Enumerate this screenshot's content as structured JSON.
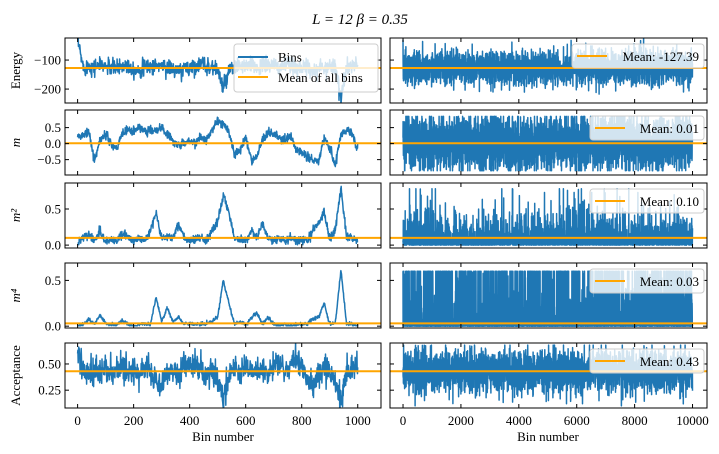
{
  "chart_data": {
    "type": "line",
    "title": "L = 12   β = 0.35",
    "xlabel": "Bin number",
    "colors": {
      "bins": "#1f77b4",
      "mean": "#ffa500"
    },
    "left": {
      "xlim": [
        -45,
        1083
      ],
      "xticks": [
        0,
        200,
        400,
        600,
        800,
        1000
      ],
      "xtick_labels": [
        "0",
        "200",
        "400",
        "600",
        "800",
        "1000"
      ],
      "n_bins": 1000,
      "legend": [
        "Bins",
        "Mean of all bins"
      ]
    },
    "right": {
      "xlim": [
        -450,
        10500
      ],
      "xticks": [
        0,
        2000,
        4000,
        6000,
        8000,
        10000
      ],
      "xtick_labels": [
        "0",
        "2000",
        "4000",
        "6000",
        "8000",
        "10000"
      ],
      "n_bins": 10000
    },
    "panels": [
      {
        "ylabel": "Energy",
        "ylim": [
          -248,
          -24
        ],
        "yticks": [
          -100,
          -200
        ],
        "ytick_labels": [
          "−100",
          "−200"
        ],
        "mean": -127.39,
        "mean_label": "Mean: -127.39",
        "coarse": [
          -30,
          -125,
          -120,
          -125,
          -118,
          -122,
          -125,
          -128,
          -120,
          -118,
          -130,
          -135,
          -125,
          -122,
          -120,
          -118,
          -125,
          -130,
          -140,
          -130,
          -125,
          -118,
          -115,
          -120,
          -125,
          -130,
          -200,
          -140,
          -125,
          -120,
          -122,
          -118,
          -125,
          -120,
          -115,
          -120,
          -125,
          -118,
          -122,
          -125,
          -120,
          -130,
          -135,
          -128,
          -125,
          -120,
          -118,
          -235,
          -125,
          -120,
          -118
        ],
        "noise": 14,
        "right_spread": 38
      },
      {
        "ylabel": "m",
        "ylim": [
          -0.98,
          1.05
        ],
        "yticks": [
          0.5,
          0.0,
          -0.5
        ],
        "ytick_labels": [
          "0.5",
          "0.0",
          "−0.5"
        ],
        "mean": 0.01,
        "mean_label": "Mean: 0.01",
        "coarse": [
          0.2,
          0.3,
          0.35,
          -0.5,
          0.1,
          0.3,
          0.0,
          -0.2,
          0.3,
          0.45,
          0.4,
          0.5,
          0.35,
          0.45,
          0.4,
          0.5,
          0.3,
          0.1,
          0.0,
          0.05,
          0.1,
          0.0,
          0.2,
          0.1,
          0.45,
          0.7,
          0.65,
          0.3,
          -0.3,
          -0.2,
          0.2,
          -0.5,
          -0.4,
          0.1,
          0.35,
          0.3,
          0.2,
          0.1,
          0.25,
          -0.2,
          -0.3,
          -0.4,
          -0.5,
          -0.55,
          0.2,
          -0.1,
          -0.7,
          0.3,
          0.4,
          0.35,
          -0.2
        ],
        "noise": 0.07,
        "right_spread": 0.45
      },
      {
        "ylabel": "m²",
        "ylim": [
          -0.04,
          0.86
        ],
        "yticks": [
          0.5,
          0.0
        ],
        "ytick_labels": [
          "0.5",
          "0.0"
        ],
        "mean": 0.1,
        "mean_label": "Mean: 0.10",
        "coarse": [
          0.02,
          0.1,
          0.15,
          0.05,
          0.2,
          0.05,
          0.08,
          0.05,
          0.15,
          0.1,
          0.05,
          0.1,
          0.05,
          0.2,
          0.45,
          0.1,
          0.1,
          0.1,
          0.3,
          0.1,
          0.05,
          0.1,
          0.1,
          0.05,
          0.2,
          0.3,
          0.7,
          0.45,
          0.1,
          0.1,
          0.05,
          0.2,
          0.1,
          0.3,
          0.1,
          0.05,
          0.1,
          0.05,
          0.1,
          0.05,
          0.1,
          0.05,
          0.2,
          0.3,
          0.45,
          0.1,
          0.2,
          0.8,
          0.1,
          0.1,
          0.05
        ],
        "noise": 0.03,
        "right_spread": 0.2
      },
      {
        "ylabel": "m⁴",
        "ylim": [
          -0.02,
          0.69
        ],
        "yticks": [
          0.5,
          0.0
        ],
        "ytick_labels": [
          "0.5",
          "0.0"
        ],
        "mean": 0.03,
        "mean_label": "Mean: 0.03",
        "coarse": [
          0.0,
          0.02,
          0.08,
          0.02,
          0.12,
          0.03,
          0.01,
          0.02,
          0.06,
          0.02,
          0.0,
          0.02,
          0.03,
          0.02,
          0.32,
          0.05,
          0.2,
          0.05,
          0.1,
          0.02,
          0.03,
          0.02,
          0.02,
          0.03,
          0.05,
          0.1,
          0.5,
          0.25,
          0.02,
          0.05,
          0.02,
          0.08,
          0.15,
          0.02,
          0.1,
          0.02,
          0.0,
          0.02,
          0.0,
          0.02,
          0.02,
          0.03,
          0.08,
          0.1,
          0.25,
          0.02,
          0.03,
          0.62,
          0.02,
          0.02,
          0.01
        ],
        "noise": 0.01,
        "right_spread": 0.08
      },
      {
        "ylabel": "Acceptance",
        "ylim": [
          0.08,
          0.7
        ],
        "yticks": [
          0.5,
          0.25
        ],
        "ytick_labels": [
          "0.50",
          "0.25"
        ],
        "mean": 0.43,
        "mean_label": "Mean: 0.43",
        "coarse": [
          0.6,
          0.45,
          0.42,
          0.45,
          0.4,
          0.48,
          0.42,
          0.45,
          0.5,
          0.42,
          0.45,
          0.4,
          0.48,
          0.42,
          0.35,
          0.3,
          0.42,
          0.45,
          0.4,
          0.5,
          0.48,
          0.5,
          0.42,
          0.4,
          0.45,
          0.35,
          0.2,
          0.4,
          0.45,
          0.42,
          0.48,
          0.4,
          0.45,
          0.42,
          0.4,
          0.5,
          0.48,
          0.45,
          0.5,
          0.55,
          0.48,
          0.35,
          0.3,
          0.4,
          0.45,
          0.42,
          0.35,
          0.12,
          0.42,
          0.45,
          0.48
        ],
        "noise": 0.06,
        "right_spread": 0.1
      }
    ]
  }
}
